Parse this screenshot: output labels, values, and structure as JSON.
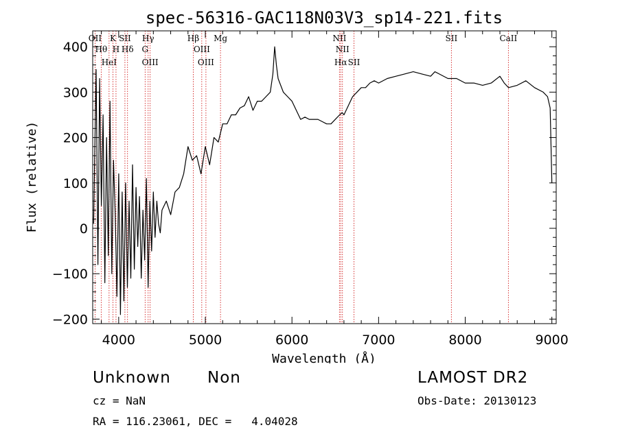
{
  "chart_data": {
    "type": "line",
    "title": "spec-56316-GAC118N03V3_sp14-221.fits",
    "xlabel": "Wavelength (Å)",
    "ylabel": "Flux (relative)",
    "xlim": [
      3700,
      9050
    ],
    "ylim": [
      -210,
      435
    ],
    "xticks": [
      4000,
      5000,
      6000,
      7000,
      8000,
      9000
    ],
    "yticks": [
      -200,
      -100,
      0,
      100,
      200,
      300,
      400
    ],
    "xtick_labels": [
      "4000",
      "5000",
      "6000",
      "7000",
      "8000",
      "9000"
    ],
    "ytick_labels": [
      "−200",
      "−100",
      "0",
      "100",
      "200",
      "300",
      "400"
    ],
    "series": [
      {
        "color": "#000000",
        "x": [
          3710,
          3740,
          3760,
          3780,
          3800,
          3820,
          3840,
          3860,
          3880,
          3900,
          3920,
          3940,
          3960,
          3980,
          4000,
          4020,
          4040,
          4060,
          4080,
          4100,
          4120,
          4140,
          4160,
          4180,
          4200,
          4220,
          4240,
          4260,
          4280,
          4300,
          4320,
          4340,
          4360,
          4380,
          4400,
          4420,
          4440,
          4460,
          4480,
          4500,
          4550,
          4600,
          4650,
          4700,
          4750,
          4800,
          4850,
          4900,
          4950,
          5000,
          5050,
          5100,
          5150,
          5200,
          5250,
          5300,
          5350,
          5400,
          5450,
          5500,
          5550,
          5600,
          5650,
          5700,
          5750,
          5780,
          5800,
          5820,
          5840,
          5860,
          5900,
          5950,
          6000,
          6050,
          6100,
          6150,
          6200,
          6250,
          6300,
          6350,
          6400,
          6450,
          6500,
          6550,
          6580,
          6600,
          6650,
          6700,
          6750,
          6800,
          6850,
          6900,
          6950,
          7000,
          7100,
          7200,
          7300,
          7400,
          7500,
          7600,
          7650,
          7700,
          7800,
          7900,
          8000,
          8100,
          8200,
          8300,
          8400,
          8450,
          8500,
          8600,
          8700,
          8800,
          8900,
          8950,
          8980,
          9000
        ],
        "y": [
          10,
          350,
          -80,
          330,
          50,
          250,
          -120,
          200,
          -60,
          280,
          -100,
          150,
          30,
          -150,
          120,
          -190,
          80,
          -160,
          100,
          -130,
          60,
          -110,
          140,
          -90,
          90,
          -40,
          70,
          -110,
          40,
          -70,
          110,
          -130,
          60,
          -50,
          80,
          -20,
          60,
          10,
          -10,
          40,
          60,
          30,
          80,
          90,
          120,
          180,
          150,
          160,
          120,
          180,
          140,
          200,
          190,
          230,
          230,
          250,
          250,
          265,
          270,
          290,
          260,
          280,
          280,
          290,
          300,
          340,
          400,
          360,
          330,
          320,
          300,
          290,
          280,
          260,
          240,
          245,
          240,
          240,
          240,
          235,
          230,
          230,
          240,
          250,
          255,
          250,
          270,
          290,
          300,
          310,
          310,
          320,
          325,
          320,
          330,
          335,
          340,
          345,
          340,
          335,
          345,
          340,
          330,
          330,
          320,
          320,
          315,
          320,
          335,
          320,
          310,
          315,
          325,
          310,
          300,
          290,
          265,
          100
        ]
      }
    ],
    "spectral_lines": [
      {
        "label": "OII",
        "wavelength": 3727
      },
      {
        "label": "Hθ",
        "wavelength": 3798
      },
      {
        "label": "HeI",
        "wavelength": 3889
      },
      {
        "label": "K",
        "wavelength": 3934
      },
      {
        "label": "H",
        "wavelength": 3969
      },
      {
        "label": "SII",
        "wavelength": 4072
      },
      {
        "label": "Hδ",
        "wavelength": 4102
      },
      {
        "label": "Hγ",
        "wavelength": 4340
      },
      {
        "label": "G",
        "wavelength": 4305
      },
      {
        "label": "OIII",
        "wavelength": 4363
      },
      {
        "label": "Hβ",
        "wavelength": 4861
      },
      {
        "label": "OIII",
        "wavelength": 4959
      },
      {
        "label": "OIII",
        "wavelength": 5007
      },
      {
        "label": "Mg",
        "wavelength": 5175
      },
      {
        "label": "NII",
        "wavelength": 6548
      },
      {
        "label": "NII",
        "wavelength": 6583
      },
      {
        "label": "Hα",
        "wavelength": 6563
      },
      {
        "label": "SII",
        "wavelength": 6716
      },
      {
        "label": "SII",
        "wavelength": 7840
      },
      {
        "label": "CaII",
        "wavelength": 8498
      }
    ],
    "line_color": "#cc0000"
  },
  "info": {
    "class_label": "Unknown",
    "subclass_label": "Non",
    "survey_label": "LAMOST DR2",
    "cz_text": "cz = NaN",
    "obs_date_text": "Obs-Date: 20130123",
    "coords_text": "RA = 116.23061, DEC =   4.04028"
  }
}
